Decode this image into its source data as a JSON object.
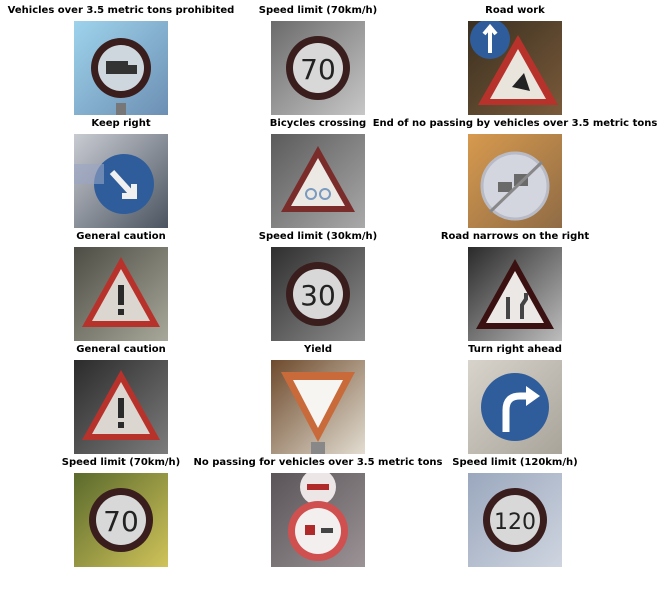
{
  "panels": [
    {
      "title": "Vehicles over 3.5 metric tons prohibited",
      "sign": "no-heavy-vehicles",
      "bg": [
        "#9ed3ec",
        "#6c8fb3"
      ],
      "speed": ""
    },
    {
      "title": "Speed limit (70km/h)",
      "sign": "speed-limit",
      "bg": [
        "#6b6b6b",
        "#c7c7c7"
      ],
      "speed": "70"
    },
    {
      "title": "Road work",
      "sign": "road-work",
      "bg": [
        "#3a3020",
        "#7a5a3a"
      ],
      "speed": ""
    },
    {
      "title": "Keep right",
      "sign": "keep-right",
      "bg": [
        "#c9cbd2",
        "#4a5460"
      ],
      "speed": ""
    },
    {
      "title": "Bicycles crossing",
      "sign": "bicycles-crossing",
      "bg": [
        "#5b5b5b",
        "#a9a9a9"
      ],
      "speed": ""
    },
    {
      "title": "End of no passing by vehicles over 3.5 metric tons",
      "sign": "end-no-passing-heavy",
      "bg": [
        "#d79a4e",
        "#8f6b45"
      ],
      "speed": ""
    },
    {
      "title": "General caution",
      "sign": "general-caution",
      "bg": [
        "#4d4d45",
        "#a8a89a"
      ],
      "speed": ""
    },
    {
      "title": "Speed limit (30km/h)",
      "sign": "speed-limit",
      "bg": [
        "#2f2f2f",
        "#8e8e8e"
      ],
      "speed": "30"
    },
    {
      "title": "Road narrows on the right",
      "sign": "road-narrows-right",
      "bg": [
        "#2a2a2a",
        "#bdbdbd"
      ],
      "speed": ""
    },
    {
      "title": "General caution",
      "sign": "general-caution",
      "bg": [
        "#2b2b2b",
        "#7c7c7c"
      ],
      "speed": ""
    },
    {
      "title": "Yield",
      "sign": "yield",
      "bg": [
        "#6e4a2c",
        "#e2ddd1"
      ],
      "speed": ""
    },
    {
      "title": "Turn right ahead",
      "sign": "turn-right-ahead",
      "bg": [
        "#d8d4cc",
        "#a8a49a"
      ],
      "speed": ""
    },
    {
      "title": "Speed limit (70km/h)",
      "sign": "speed-limit",
      "bg": [
        "#5a6a2c",
        "#d0c35a"
      ],
      "speed": "70"
    },
    {
      "title": "No passing for vehicles over 3.5 metric tons",
      "sign": "no-passing-heavy",
      "bg": [
        "#5a5458",
        "#9b9396"
      ],
      "speed": ""
    },
    {
      "title": "Speed limit (120km/h)",
      "sign": "speed-limit",
      "bg": [
        "#9aa7bd",
        "#cfd5e0"
      ],
      "speed": "120"
    }
  ],
  "colors": {
    "red": "#b8322c",
    "blue": "#2f5d9c",
    "ring": "#3a1e1e",
    "white": "#f4f1ee"
  }
}
